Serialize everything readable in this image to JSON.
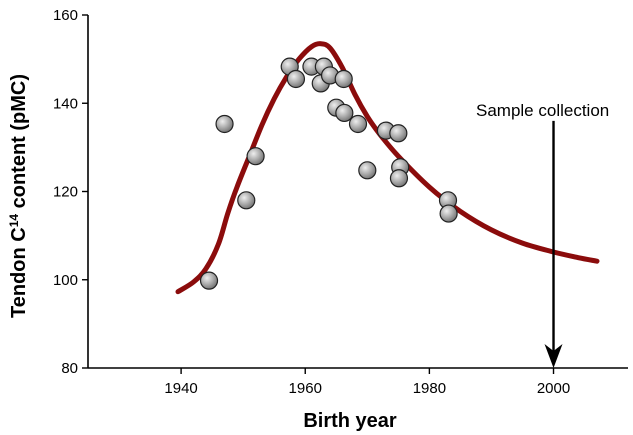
{
  "chart_data": {
    "type": "scatter",
    "title": "",
    "xlabel": "Birth year",
    "ylabel_main": "Tendon C",
    "ylabel_sup": "14",
    "ylabel_rest": " content (pMC)",
    "xlim": [
      1925,
      2012
    ],
    "ylim": [
      80,
      160
    ],
    "xticks": [
      1940,
      1960,
      1980,
      2000
    ],
    "yticks": [
      80,
      100,
      120,
      140,
      160
    ],
    "colors": {
      "curve": "#8b0c0c",
      "points": "#a9a9a9",
      "point_edge": "#222222"
    },
    "points": [
      {
        "x": 1944.5,
        "y": 99.8
      },
      {
        "x": 1947,
        "y": 135.3
      },
      {
        "x": 1950.5,
        "y": 118
      },
      {
        "x": 1952,
        "y": 128
      },
      {
        "x": 1957.5,
        "y": 148.3
      },
      {
        "x": 1958.5,
        "y": 145.5
      },
      {
        "x": 1961,
        "y": 148.3
      },
      {
        "x": 1962.5,
        "y": 144.5
      },
      {
        "x": 1963,
        "y": 148.3
      },
      {
        "x": 1964,
        "y": 146.3
      },
      {
        "x": 1965,
        "y": 139
      },
      {
        "x": 1966.2,
        "y": 145.5
      },
      {
        "x": 1966.3,
        "y": 137.8
      },
      {
        "x": 1968.5,
        "y": 135.3
      },
      {
        "x": 1970,
        "y": 124.8
      },
      {
        "x": 1973,
        "y": 133.8
      },
      {
        "x": 1975,
        "y": 133.2
      },
      {
        "x": 1975.3,
        "y": 125.5
      },
      {
        "x": 1975.1,
        "y": 123
      },
      {
        "x": 1983,
        "y": 118
      },
      {
        "x": 1983.1,
        "y": 115
      }
    ],
    "curve": [
      {
        "x": 1939.5,
        "y": 97.3
      },
      {
        "x": 1942,
        "y": 99.5
      },
      {
        "x": 1944,
        "y": 102.5
      },
      {
        "x": 1946,
        "y": 108
      },
      {
        "x": 1947.5,
        "y": 115
      },
      {
        "x": 1949,
        "y": 121
      },
      {
        "x": 1951,
        "y": 128
      },
      {
        "x": 1953,
        "y": 135
      },
      {
        "x": 1955,
        "y": 141
      },
      {
        "x": 1957,
        "y": 146
      },
      {
        "x": 1959,
        "y": 150
      },
      {
        "x": 1961,
        "y": 152.8
      },
      {
        "x": 1962.5,
        "y": 153.5
      },
      {
        "x": 1964,
        "y": 152.5
      },
      {
        "x": 1966,
        "y": 148
      },
      {
        "x": 1968,
        "y": 142
      },
      {
        "x": 1970,
        "y": 137
      },
      {
        "x": 1972,
        "y": 133
      },
      {
        "x": 1975,
        "y": 128
      },
      {
        "x": 1980,
        "y": 121
      },
      {
        "x": 1985,
        "y": 115.5
      },
      {
        "x": 1990,
        "y": 111.3
      },
      {
        "x": 1995,
        "y": 108.3
      },
      {
        "x": 2000,
        "y": 106.3
      },
      {
        "x": 2004,
        "y": 105
      },
      {
        "x": 2007,
        "y": 104.2
      }
    ],
    "annotation": {
      "text": "Sample collection",
      "arrow_x": 2000,
      "arrow_from_y": 136,
      "arrow_to_y": 80
    }
  }
}
